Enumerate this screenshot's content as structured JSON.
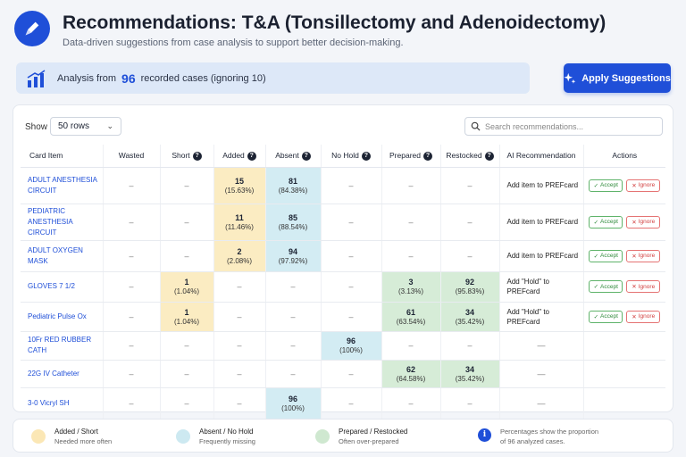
{
  "header": {
    "title": "Recommendations: T&A (Tonsillectomy and Adenoidectomy)",
    "subtitle": "Data-driven suggestions from case analysis to support better decision-making.",
    "logo_icon": "pen-icon"
  },
  "analysis": {
    "prefix": "Analysis from",
    "count": "96",
    "suffix": "recorded cases (ignoring 10)"
  },
  "apply_button": {
    "label": "Apply Suggestions",
    "icon": "sparkle-icon"
  },
  "controls": {
    "show_label": "Show",
    "rows_value": "50 rows",
    "search_placeholder": "Search recommendations..."
  },
  "table": {
    "headers": {
      "item": "Card Item",
      "wasted": "Wasted",
      "short": "Short",
      "added": "Added",
      "absent": "Absent",
      "nohold": "No Hold",
      "prepared": "Prepared",
      "restocked": "Restocked",
      "ai": "AI Recommendation",
      "actions": "Actions"
    },
    "accept_label": "Accept",
    "ignore_label": "Ignore",
    "dash": "–",
    "rows": [
      {
        "item": "ADULT ANESTHESIA CIRCUIT",
        "added_v": "15",
        "added_p": "(15.63%)",
        "absent_v": "81",
        "absent_p": "(84.38%)",
        "rec": "Add item to PREFcard"
      },
      {
        "item": "PEDIATRIC ANESTHESIA CIRCUIT",
        "added_v": "11",
        "added_p": "(11.46%)",
        "absent_v": "85",
        "absent_p": "(88.54%)",
        "rec": "Add item to PREFcard"
      },
      {
        "item": "ADULT OXYGEN MASK",
        "added_v": "2",
        "added_p": "(2.08%)",
        "absent_v": "94",
        "absent_p": "(97.92%)",
        "rec": "Add item to PREFcard"
      },
      {
        "item": "GLOVES 7 1/2",
        "short_v": "1",
        "short_p": "(1.04%)",
        "prepared_v": "3",
        "prepared_p": "(3.13%)",
        "restocked_v": "92",
        "restocked_p": "(95.83%)",
        "rec": "Add \"Hold\" to PREFcard"
      },
      {
        "item": "Pediatric Pulse Ox",
        "short_v": "1",
        "short_p": "(1.04%)",
        "prepared_v": "61",
        "prepared_p": "(63.54%)",
        "restocked_v": "34",
        "restocked_p": "(35.42%)",
        "rec": "Add \"Hold\" to PREFcard"
      },
      {
        "item": "10Fr RED RUBBER CATH",
        "nohold_v": "96",
        "nohold_p": "(100%)",
        "rec": "—"
      },
      {
        "item": "22G IV Catheter",
        "prepared_v": "62",
        "prepared_p": "(64.58%)",
        "restocked_v": "34",
        "restocked_p": "(35.42%)",
        "rec": "—"
      },
      {
        "item": "3-0 Vicryl SH",
        "absent_v": "96",
        "absent_p": "(100%)",
        "rec": "—"
      }
    ]
  },
  "legend": {
    "added_short": {
      "title": "Added / Short",
      "desc": "Needed more often",
      "color": "#fbe7b5"
    },
    "absent_nohold": {
      "title": "Absent / No Hold",
      "desc": "Frequently missing",
      "color": "#cde9f1"
    },
    "prepared_restocked": {
      "title": "Prepared / Restocked",
      "desc": "Often over-prepared",
      "color": "#cfe8d0"
    },
    "note_line1": "Percentages show the proportion",
    "note_line2": "of 96 analyzed cases."
  },
  "colors": {
    "accent": "#1f4fd8",
    "yellow": "#fbecc2",
    "blue": "#d3ecf3",
    "green": "#d6ecd7"
  }
}
